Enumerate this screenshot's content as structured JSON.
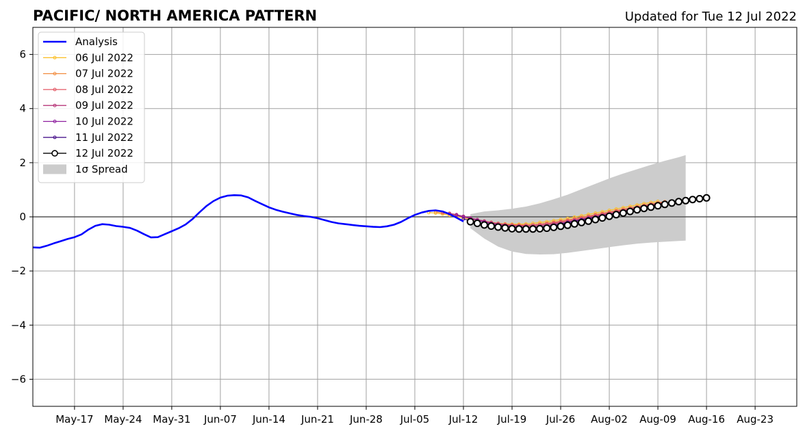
{
  "chart_data": {
    "type": "line",
    "title": "PACIFIC/ NORTH AMERICA PATTERN",
    "subtitle": "Updated for Tue 12 Jul 2022",
    "xlim": [
      "2022-05-11",
      "2022-08-29"
    ],
    "ylim": [
      -7,
      7
    ],
    "x_ticks": [
      "2022-05-17",
      "2022-05-24",
      "2022-05-31",
      "2022-06-07",
      "2022-06-14",
      "2022-06-21",
      "2022-06-28",
      "2022-07-05",
      "2022-07-12",
      "2022-07-19",
      "2022-07-26",
      "2022-08-02",
      "2022-08-09",
      "2022-08-16",
      "2022-08-23"
    ],
    "x_tick_labels": [
      "May-17",
      "May-24",
      "May-31",
      "Jun-07",
      "Jun-14",
      "Jun-21",
      "Jun-28",
      "Jul-05",
      "Jul-12",
      "Jul-19",
      "Jul-26",
      "Aug-02",
      "Aug-09",
      "Aug-16",
      "Aug-23"
    ],
    "y_ticks": [
      -6,
      -4,
      -2,
      0,
      2,
      4,
      6
    ],
    "y_tick_labels": [
      "−6",
      "−4",
      "−2",
      "0",
      "2",
      "4",
      "6"
    ],
    "grid": true,
    "legend_position": "top-left",
    "analysis": {
      "name": "Analysis",
      "color": "#0000ff",
      "x": [
        "2022-05-11",
        "2022-05-12",
        "2022-05-13",
        "2022-05-14",
        "2022-05-15",
        "2022-05-16",
        "2022-05-17",
        "2022-05-18",
        "2022-05-19",
        "2022-05-20",
        "2022-05-21",
        "2022-05-22",
        "2022-05-23",
        "2022-05-24",
        "2022-05-25",
        "2022-05-26",
        "2022-05-27",
        "2022-05-28",
        "2022-05-29",
        "2022-05-30",
        "2022-05-31",
        "2022-06-01",
        "2022-06-02",
        "2022-06-03",
        "2022-06-04",
        "2022-06-05",
        "2022-06-06",
        "2022-06-07",
        "2022-06-08",
        "2022-06-09",
        "2022-06-10",
        "2022-06-11",
        "2022-06-12",
        "2022-06-13",
        "2022-06-14",
        "2022-06-15",
        "2022-06-16",
        "2022-06-17",
        "2022-06-18",
        "2022-06-19",
        "2022-06-20",
        "2022-06-21",
        "2022-06-22",
        "2022-06-23",
        "2022-06-24",
        "2022-06-25",
        "2022-06-26",
        "2022-06-27",
        "2022-06-28",
        "2022-06-29",
        "2022-06-30",
        "2022-07-01",
        "2022-07-02",
        "2022-07-03",
        "2022-07-04",
        "2022-07-05",
        "2022-07-06",
        "2022-07-07",
        "2022-07-08",
        "2022-07-09",
        "2022-07-10",
        "2022-07-11",
        "2022-07-12"
      ],
      "y": [
        -1.13,
        -1.14,
        -1.07,
        -0.98,
        -0.9,
        -0.82,
        -0.75,
        -0.65,
        -0.47,
        -0.33,
        -0.27,
        -0.29,
        -0.34,
        -0.37,
        -0.41,
        -0.51,
        -0.64,
        -0.76,
        -0.75,
        -0.64,
        -0.53,
        -0.42,
        -0.28,
        -0.08,
        0.17,
        0.4,
        0.58,
        0.71,
        0.78,
        0.8,
        0.79,
        0.72,
        0.59,
        0.47,
        0.35,
        0.26,
        0.19,
        0.13,
        0.07,
        0.03,
        0.0,
        -0.05,
        -0.12,
        -0.19,
        -0.24,
        -0.27,
        -0.3,
        -0.33,
        -0.35,
        -0.37,
        -0.38,
        -0.35,
        -0.29,
        -0.19,
        -0.05,
        0.07,
        0.16,
        0.22,
        0.24,
        0.2,
        0.1,
        -0.03,
        -0.17
      ]
    },
    "forecasts": [
      {
        "name": "06 Jul 2022",
        "color": "#fbc02d",
        "start": "2022-07-07",
        "y": [
          0.16,
          0.14,
          0.1,
          0.06,
          0.01,
          -0.04,
          -0.09,
          -0.13,
          -0.17,
          -0.21,
          -0.24,
          -0.26,
          -0.27,
          -0.27,
          -0.26,
          -0.24,
          -0.21,
          -0.18,
          -0.14,
          -0.1,
          -0.06,
          -0.01,
          0.04,
          0.09,
          0.14,
          0.19,
          0.24,
          0.29,
          0.34,
          0.39,
          0.44,
          0.49,
          0.53,
          0.57
        ]
      },
      {
        "name": "07 Jul 2022",
        "color": "#f28c3f",
        "start": "2022-07-08",
        "y": [
          0.18,
          0.14,
          0.1,
          0.05,
          0.0,
          -0.06,
          -0.11,
          -0.16,
          -0.2,
          -0.24,
          -0.27,
          -0.29,
          -0.3,
          -0.3,
          -0.29,
          -0.27,
          -0.24,
          -0.2,
          -0.16,
          -0.12,
          -0.07,
          -0.02,
          0.03,
          0.08,
          0.13,
          0.18,
          0.23,
          0.28,
          0.33,
          0.38,
          0.43,
          0.48,
          0.52,
          0.56
        ]
      },
      {
        "name": "08 Jul 2022",
        "color": "#e35763",
        "start": "2022-07-09",
        "y": [
          0.16,
          0.11,
          0.06,
          0.01,
          -0.05,
          -0.11,
          -0.16,
          -0.21,
          -0.25,
          -0.28,
          -0.3,
          -0.31,
          -0.31,
          -0.3,
          -0.28,
          -0.25,
          -0.22,
          -0.18,
          -0.14,
          -0.09,
          -0.04,
          0.01,
          0.06,
          0.11,
          0.16,
          0.21,
          0.26,
          0.31,
          0.36,
          0.41,
          0.46,
          0.5,
          0.54
        ]
      },
      {
        "name": "09 Jul 2022",
        "color": "#b73779",
        "start": "2022-07-10",
        "y": [
          0.13,
          0.08,
          0.02,
          -0.04,
          -0.1,
          -0.16,
          -0.22,
          -0.26,
          -0.3,
          -0.33,
          -0.34,
          -0.35,
          -0.34,
          -0.32,
          -0.29,
          -0.26,
          -0.22,
          -0.18,
          -0.13,
          -0.08,
          -0.03,
          0.02,
          0.07,
          0.12,
          0.17,
          0.22,
          0.27,
          0.32,
          0.37,
          0.42,
          0.47,
          0.52
        ]
      },
      {
        "name": "10 Jul 2022",
        "color": "#8d1c9e",
        "start": "2022-07-11",
        "y": [
          0.06,
          0.0,
          -0.06,
          -0.13,
          -0.19,
          -0.25,
          -0.3,
          -0.34,
          -0.37,
          -0.39,
          -0.4,
          -0.39,
          -0.37,
          -0.34,
          -0.31,
          -0.27,
          -0.22,
          -0.17,
          -0.12,
          -0.07,
          -0.02,
          0.03,
          0.08,
          0.13,
          0.18,
          0.23,
          0.28,
          0.33,
          0.38,
          0.43,
          0.48
        ]
      },
      {
        "name": "11 Jul 2022",
        "color": "#4a148c",
        "start": "2022-07-12",
        "y": [
          -0.08,
          -0.14,
          -0.21,
          -0.27,
          -0.32,
          -0.37,
          -0.4,
          -0.42,
          -0.43,
          -0.43,
          -0.41,
          -0.38,
          -0.35,
          -0.31,
          -0.26,
          -0.21,
          -0.16,
          -0.11,
          -0.06,
          -0.01,
          0.04,
          0.09,
          0.14,
          0.19,
          0.24,
          0.29,
          0.34,
          0.39,
          0.44,
          0.49
        ]
      }
    ],
    "latest_forecast": {
      "name": "12 Jul 2022",
      "color": "#000000",
      "start": "2022-07-13",
      "y": [
        -0.18,
        -0.24,
        -0.3,
        -0.34,
        -0.38,
        -0.41,
        -0.44,
        -0.45,
        -0.45,
        -0.45,
        -0.44,
        -0.42,
        -0.39,
        -0.35,
        -0.31,
        -0.26,
        -0.21,
        -0.16,
        -0.1,
        -0.04,
        0.02,
        0.08,
        0.14,
        0.2,
        0.26,
        0.31,
        0.36,
        0.41,
        0.46,
        0.51,
        0.56,
        0.6,
        0.64,
        0.67,
        0.7
      ]
    },
    "spread": {
      "name": "1σ Spread",
      "color": "#cccccc",
      "x": [
        "2022-07-13",
        "2022-07-15",
        "2022-07-17",
        "2022-07-19",
        "2022-07-21",
        "2022-07-23",
        "2022-07-25",
        "2022-07-27",
        "2022-07-29",
        "2022-07-31",
        "2022-08-02",
        "2022-08-04",
        "2022-08-06",
        "2022-08-08",
        "2022-08-10",
        "2022-08-12",
        "2022-08-13"
      ],
      "upper": [
        0.1,
        0.2,
        0.24,
        0.3,
        0.38,
        0.5,
        0.65,
        0.82,
        1.02,
        1.22,
        1.42,
        1.6,
        1.76,
        1.92,
        2.07,
        2.2,
        2.28
      ],
      "lower": [
        -0.42,
        -0.8,
        -1.1,
        -1.28,
        -1.37,
        -1.39,
        -1.38,
        -1.33,
        -1.26,
        -1.19,
        -1.12,
        -1.05,
        -0.99,
        -0.95,
        -0.92,
        -0.89,
        -0.88
      ]
    }
  }
}
